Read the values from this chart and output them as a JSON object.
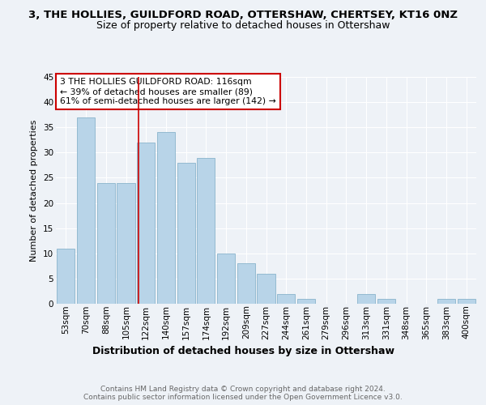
{
  "title": "3, THE HOLLIES, GUILDFORD ROAD, OTTERSHAW, CHERTSEY, KT16 0NZ",
  "subtitle": "Size of property relative to detached houses in Ottershaw",
  "xlabel": "Distribution of detached houses by size in Ottershaw",
  "ylabel": "Number of detached properties",
  "bar_color": "#b8d4e8",
  "bar_edgecolor": "#8ab4cc",
  "categories": [
    "53sqm",
    "70sqm",
    "88sqm",
    "105sqm",
    "122sqm",
    "140sqm",
    "157sqm",
    "174sqm",
    "192sqm",
    "209sqm",
    "227sqm",
    "244sqm",
    "261sqm",
    "279sqm",
    "296sqm",
    "313sqm",
    "331sqm",
    "348sqm",
    "365sqm",
    "383sqm",
    "400sqm"
  ],
  "values": [
    11,
    37,
    24,
    24,
    32,
    34,
    28,
    29,
    10,
    8,
    6,
    2,
    1,
    0,
    0,
    2,
    1,
    0,
    0,
    1,
    1
  ],
  "ylim": [
    0,
    45
  ],
  "yticks": [
    0,
    5,
    10,
    15,
    20,
    25,
    30,
    35,
    40,
    45
  ],
  "vline_x": 3.647,
  "vline_color": "#cc0000",
  "annotation_text": "3 THE HOLLIES GUILDFORD ROAD: 116sqm\n← 39% of detached houses are smaller (89)\n61% of semi-detached houses are larger (142) →",
  "annotation_box_edgecolor": "#cc0000",
  "background_color": "#eef2f7",
  "footer": "Contains HM Land Registry data © Crown copyright and database right 2024.\nContains public sector information licensed under the Open Government Licence v3.0.",
  "grid_color": "#ffffff",
  "title_fontsize": 9.5,
  "subtitle_fontsize": 9,
  "xlabel_fontsize": 9,
  "ylabel_fontsize": 8,
  "tick_fontsize": 7.5,
  "annotation_fontsize": 7.8,
  "footer_fontsize": 6.5
}
